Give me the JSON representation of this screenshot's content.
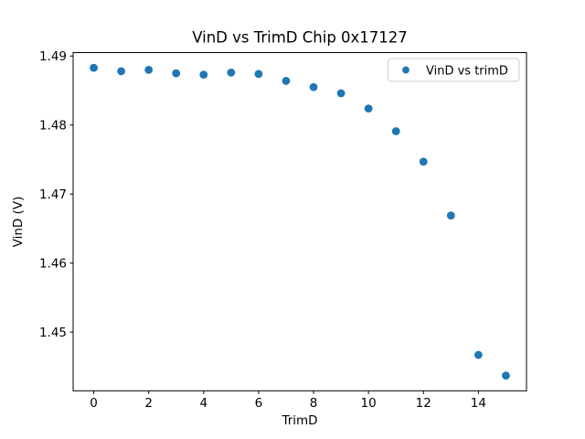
{
  "figure": {
    "background": "#ffffff",
    "frame_color": "#000000"
  },
  "chart_data": {
    "type": "scatter",
    "title": "VinD vs TrimD Chip 0x17127",
    "xlabel": "TrimD",
    "ylabel": "VinD (V)",
    "series": [
      {
        "name": "VinD vs trimD",
        "marker": "circle",
        "color": "#1f77b4",
        "x": [
          0,
          1,
          2,
          3,
          4,
          5,
          6,
          7,
          8,
          9,
          10,
          11,
          12,
          13,
          14,
          15
        ],
        "y": [
          1.4883,
          1.4878,
          1.488,
          1.4875,
          1.4873,
          1.4876,
          1.4874,
          1.4864,
          1.4855,
          1.4846,
          1.4824,
          1.4791,
          1.4747,
          1.4669,
          1.4467,
          1.4437
        ]
      }
    ],
    "xlim": [
      -0.75,
      15.75
    ],
    "ylim": [
      1.4415,
      1.4905
    ],
    "xticks": {
      "values": [
        0,
        2,
        4,
        6,
        8,
        10,
        12,
        14
      ],
      "labels": [
        "0",
        "2",
        "4",
        "6",
        "8",
        "10",
        "12",
        "14"
      ]
    },
    "yticks": {
      "values": [
        1.45,
        1.46,
        1.47,
        1.48,
        1.49
      ],
      "labels": [
        "1.45",
        "1.46",
        "1.47",
        "1.48",
        "1.49"
      ]
    },
    "grid": false,
    "legend": {
      "location": "upper right"
    }
  }
}
